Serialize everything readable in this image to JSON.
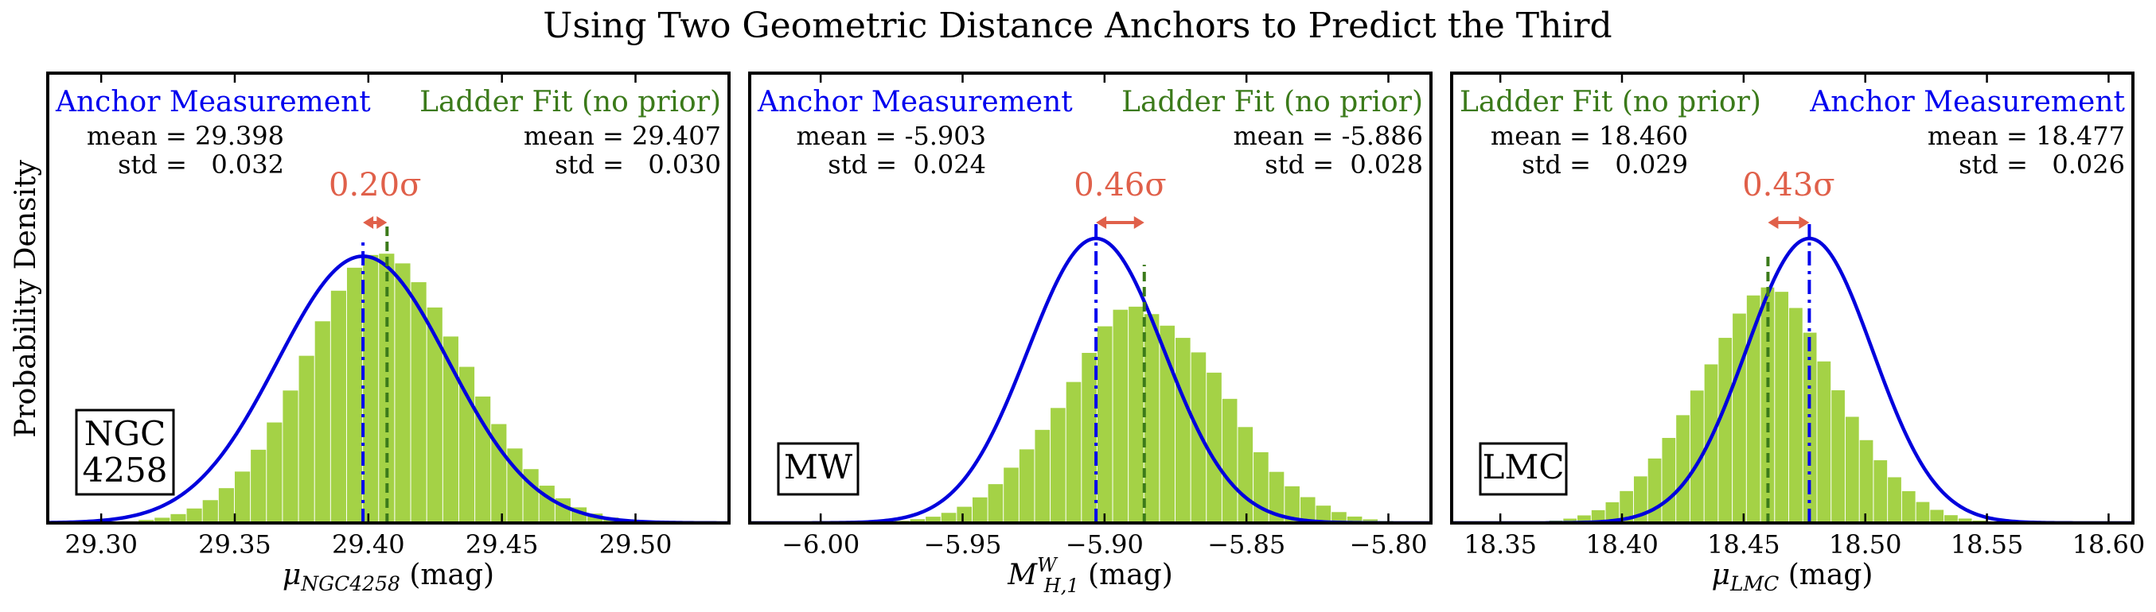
{
  "figure": {
    "title": "Using Two Geometric Distance Anchors to Predict the Third",
    "ylabel": "Probability Density"
  },
  "colors": {
    "anchor": "#0000ee",
    "ladder": "#3b7a1a",
    "histogram": "#9acd32",
    "tension": "#e0604a"
  },
  "chart_data": [
    {
      "type": "bar",
      "anchor_label": "NGC\n4258",
      "xlabel_main": "μ",
      "xlabel_sub": "NGC4258",
      "xlabel_sup": "",
      "xlabel_unit": " (mag)",
      "xlim": [
        29.28,
        29.535
      ],
      "xticks": [
        29.3,
        29.35,
        29.4,
        29.45,
        29.5
      ],
      "xtick_labels": [
        "29.30",
        "29.35",
        "29.40",
        "29.45",
        "29.50"
      ],
      "legend_order": [
        "anchor",
        "ladder"
      ],
      "anchor": {
        "name": "Anchor Measurement",
        "mean": 29.398,
        "std": 0.032,
        "mean_text": "mean = 29.398",
        "std_text": "std =   0.032"
      },
      "ladder": {
        "name": "Ladder Fit (no prior)",
        "mean": 29.407,
        "std": 0.03,
        "mean_text": "mean = 29.407",
        "std_text": "std =   0.030"
      },
      "tension_text": "0.20σ",
      "hist": {
        "bin_width": 0.006,
        "density_ratio": 0.94
      }
    },
    {
      "type": "bar",
      "anchor_label": "MW",
      "xlabel_main": "M",
      "xlabel_sub": "H,1",
      "xlabel_sup": "W",
      "xlabel_unit": " (mag)",
      "xlim": [
        -6.025,
        -5.785
      ],
      "xticks": [
        -6.0,
        -5.95,
        -5.9,
        -5.85,
        -5.8
      ],
      "xtick_labels": [
        "−6.00",
        "−5.95",
        "−5.90",
        "−5.85",
        "−5.80"
      ],
      "legend_order": [
        "anchor",
        "ladder"
      ],
      "anchor": {
        "name": "Anchor Measurement",
        "mean": -5.903,
        "std": 0.024,
        "mean_text": "mean = -5.903",
        "std_text": "std =  0.024"
      },
      "ladder": {
        "name": "Ladder Fit (no prior)",
        "mean": -5.886,
        "std": 0.028,
        "mean_text": "mean = -5.886",
        "std_text": "std =  0.028"
      },
      "tension_text": "0.46σ",
      "hist": {
        "bin_width": 0.0055,
        "density_ratio": 0.88
      }
    },
    {
      "type": "bar",
      "anchor_label": "LMC",
      "xlabel_main": "μ",
      "xlabel_sub": "LMC",
      "xlabel_sup": "",
      "xlabel_unit": " (mag)",
      "xlim": [
        18.33,
        18.61
      ],
      "xticks": [
        18.35,
        18.4,
        18.45,
        18.5,
        18.55,
        18.6
      ],
      "xtick_labels": [
        "18.35",
        "18.40",
        "18.45",
        "18.50",
        "18.55",
        "18.60"
      ],
      "legend_order": [
        "ladder",
        "anchor"
      ],
      "anchor": {
        "name": "Anchor Measurement",
        "mean": 18.477,
        "std": 0.026,
        "mean_text": "mean = 18.477",
        "std_text": "std =   0.026"
      },
      "ladder": {
        "name": "Ladder Fit (no prior)",
        "mean": 18.46,
        "std": 0.029,
        "mean_text": "mean = 18.460",
        "std_text": "std =   0.029"
      },
      "tension_text": "0.43σ",
      "hist": {
        "bin_width": 0.0058,
        "density_ratio": 0.89
      }
    }
  ]
}
